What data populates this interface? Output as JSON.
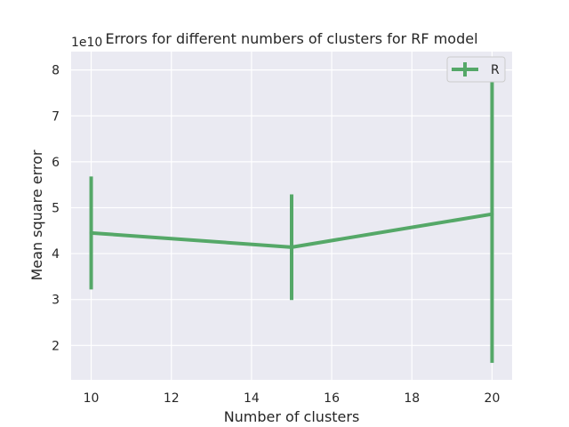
{
  "chart_data": {
    "type": "line",
    "title": "Errors for different numbers of clusters for RF model",
    "xlabel": "Number of clusters",
    "ylabel": "Mean square error",
    "y_offset_text": "1e10",
    "xlim": [
      9.5,
      20.5
    ],
    "ylim": [
      1.25,
      8.4
    ],
    "x_ticks": [
      10,
      12,
      14,
      16,
      18,
      20
    ],
    "y_ticks": [
      2,
      3,
      4,
      5,
      6,
      7,
      8
    ],
    "grid": true,
    "legend_position": "top-right",
    "series": [
      {
        "name": "R",
        "color": "#55a868",
        "x": [
          10,
          15,
          20
        ],
        "y": [
          4.45,
          4.14,
          4.86
        ],
        "error_low": [
          3.22,
          2.99,
          1.62
        ],
        "error_high": [
          5.68,
          5.29,
          8.1
        ]
      }
    ]
  }
}
